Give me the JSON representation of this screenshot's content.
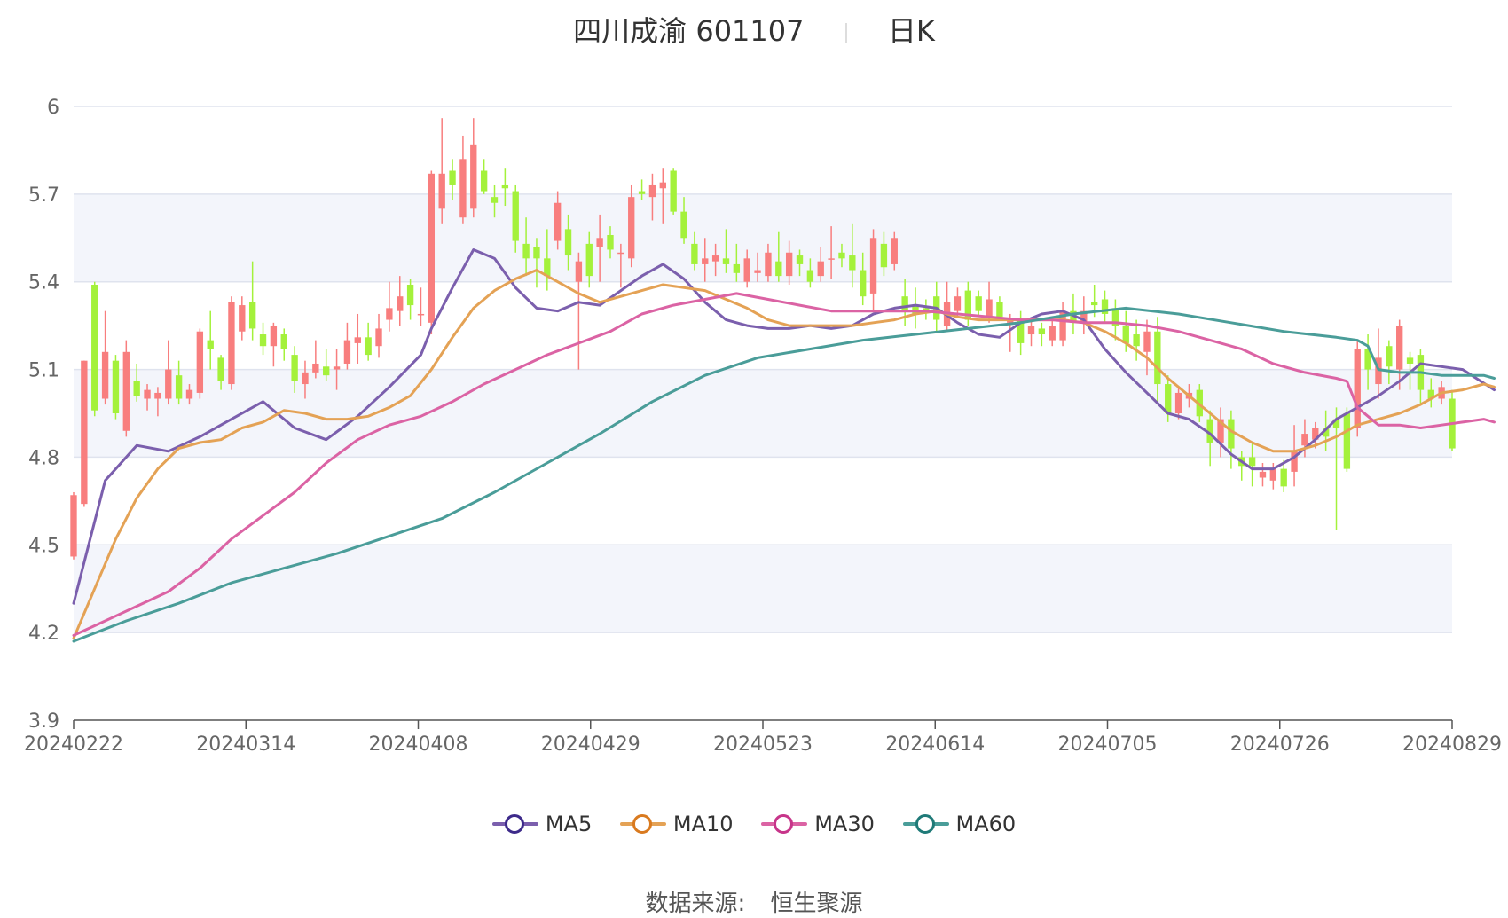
{
  "title": {
    "name": "四川成渝 601107",
    "period": "日K"
  },
  "source": {
    "label": "数据来源:",
    "provider": "恒生聚源"
  },
  "chart_data": {
    "type": "candlestick",
    "x_tick_labels": [
      "20240222",
      "20240314",
      "20240408",
      "20240429",
      "20240523",
      "20240614",
      "20240705",
      "20240726",
      "20240829"
    ],
    "y_ticks": [
      3.9,
      4.2,
      4.5,
      4.8,
      5.1,
      5.4,
      5.7,
      6
    ],
    "ylim": [
      3.9,
      6.0
    ],
    "colors": {
      "up": "#f87e7e",
      "down": "#a4f13b",
      "grid": "#dfe3ee",
      "band": "#f3f5fb",
      "axis": "#555555"
    },
    "candles": [
      [
        4.46,
        4.67,
        4.45,
        4.68
      ],
      [
        4.64,
        5.13,
        4.63,
        5.13
      ],
      [
        5.39,
        4.96,
        4.94,
        5.4
      ],
      [
        5.0,
        5.16,
        4.98,
        5.3
      ],
      [
        5.13,
        4.95,
        4.93,
        5.15
      ],
      [
        4.89,
        5.16,
        4.87,
        5.2
      ],
      [
        5.06,
        5.01,
        4.99,
        5.12
      ],
      [
        5.0,
        5.03,
        4.96,
        5.05
      ],
      [
        5.0,
        5.02,
        4.94,
        5.04
      ],
      [
        5.0,
        5.1,
        4.98,
        5.2
      ],
      [
        5.08,
        5.0,
        4.98,
        5.13
      ],
      [
        5.0,
        5.03,
        4.98,
        5.05
      ],
      [
        5.02,
        5.23,
        5.0,
        5.24
      ],
      [
        5.2,
        5.17,
        5.1,
        5.3
      ],
      [
        5.14,
        5.06,
        5.03,
        5.15
      ],
      [
        5.05,
        5.33,
        5.03,
        5.35
      ],
      [
        5.23,
        5.32,
        5.2,
        5.35
      ],
      [
        5.33,
        5.24,
        5.2,
        5.47
      ],
      [
        5.22,
        5.18,
        5.15,
        5.26
      ],
      [
        5.18,
        5.25,
        5.11,
        5.26
      ],
      [
        5.22,
        5.17,
        5.13,
        5.24
      ],
      [
        5.15,
        5.06,
        5.02,
        5.18
      ],
      [
        5.05,
        5.09,
        5.0,
        5.13
      ],
      [
        5.09,
        5.12,
        5.07,
        5.2
      ],
      [
        5.11,
        5.08,
        5.06,
        5.17
      ],
      [
        5.1,
        5.11,
        5.03,
        5.17
      ],
      [
        5.12,
        5.2,
        5.1,
        5.26
      ],
      [
        5.19,
        5.21,
        5.12,
        5.29
      ],
      [
        5.21,
        5.15,
        5.13,
        5.26
      ],
      [
        5.18,
        5.24,
        5.14,
        5.29
      ],
      [
        5.27,
        5.31,
        5.23,
        5.4
      ],
      [
        5.3,
        5.35,
        5.25,
        5.42
      ],
      [
        5.39,
        5.32,
        5.27,
        5.41
      ],
      [
        5.29,
        5.29,
        5.25,
        5.38
      ],
      [
        5.26,
        5.77,
        5.22,
        5.78
      ],
      [
        5.65,
        5.77,
        5.6,
        5.96
      ],
      [
        5.78,
        5.73,
        5.68,
        5.82
      ],
      [
        5.62,
        5.82,
        5.6,
        5.9
      ],
      [
        5.65,
        5.87,
        5.62,
        5.96
      ],
      [
        5.78,
        5.71,
        5.7,
        5.82
      ],
      [
        5.69,
        5.67,
        5.62,
        5.73
      ],
      [
        5.73,
        5.72,
        5.66,
        5.79
      ],
      [
        5.71,
        5.54,
        5.5,
        5.73
      ],
      [
        5.53,
        5.48,
        5.42,
        5.62
      ],
      [
        5.52,
        5.48,
        5.38,
        5.55
      ],
      [
        5.48,
        5.42,
        5.37,
        5.58
      ],
      [
        5.54,
        5.67,
        5.51,
        5.71
      ],
      [
        5.58,
        5.49,
        5.44,
        5.63
      ],
      [
        5.4,
        5.47,
        5.1,
        5.5
      ],
      [
        5.53,
        5.42,
        5.38,
        5.57
      ],
      [
        5.52,
        5.55,
        5.4,
        5.63
      ],
      [
        5.56,
        5.51,
        5.48,
        5.59
      ],
      [
        5.5,
        5.5,
        5.38,
        5.53
      ],
      [
        5.48,
        5.69,
        5.45,
        5.73
      ],
      [
        5.71,
        5.7,
        5.68,
        5.75
      ],
      [
        5.69,
        5.73,
        5.61,
        5.77
      ],
      [
        5.72,
        5.74,
        5.6,
        5.79
      ],
      [
        5.78,
        5.64,
        5.63,
        5.79
      ],
      [
        5.64,
        5.55,
        5.53,
        5.69
      ],
      [
        5.53,
        5.46,
        5.44,
        5.57
      ],
      [
        5.46,
        5.48,
        5.4,
        5.55
      ],
      [
        5.47,
        5.49,
        5.42,
        5.53
      ],
      [
        5.48,
        5.46,
        5.43,
        5.58
      ],
      [
        5.46,
        5.43,
        5.4,
        5.53
      ],
      [
        5.4,
        5.48,
        5.38,
        5.51
      ],
      [
        5.43,
        5.44,
        5.4,
        5.5
      ],
      [
        5.42,
        5.5,
        5.4,
        5.53
      ],
      [
        5.47,
        5.42,
        5.4,
        5.57
      ],
      [
        5.42,
        5.5,
        5.39,
        5.54
      ],
      [
        5.49,
        5.46,
        5.42,
        5.51
      ],
      [
        5.44,
        5.4,
        5.38,
        5.48
      ],
      [
        5.42,
        5.47,
        5.4,
        5.52
      ],
      [
        5.48,
        5.48,
        5.41,
        5.59
      ],
      [
        5.5,
        5.48,
        5.45,
        5.53
      ],
      [
        5.49,
        5.44,
        5.38,
        5.6
      ],
      [
        5.44,
        5.35,
        5.32,
        5.5
      ],
      [
        5.36,
        5.55,
        5.3,
        5.58
      ],
      [
        5.53,
        5.45,
        5.42,
        5.57
      ],
      [
        5.46,
        5.55,
        5.44,
        5.57
      ],
      [
        5.35,
        5.3,
        5.25,
        5.41
      ],
      [
        5.32,
        5.29,
        5.24,
        5.38
      ],
      [
        5.31,
        5.3,
        5.27,
        5.34
      ],
      [
        5.35,
        5.27,
        5.23,
        5.4
      ],
      [
        5.25,
        5.33,
        5.23,
        5.4
      ],
      [
        5.3,
        5.35,
        5.28,
        5.38
      ],
      [
        5.37,
        5.27,
        5.25,
        5.4
      ],
      [
        5.35,
        5.3,
        5.28,
        5.37
      ],
      [
        5.28,
        5.34,
        5.26,
        5.4
      ],
      [
        5.33,
        5.28,
        5.27,
        5.35
      ],
      [
        5.26,
        5.27,
        5.16,
        5.29
      ],
      [
        5.27,
        5.19,
        5.15,
        5.3
      ],
      [
        5.22,
        5.25,
        5.18,
        5.27
      ],
      [
        5.24,
        5.22,
        5.18,
        5.26
      ],
      [
        5.2,
        5.25,
        5.18,
        5.28
      ],
      [
        5.2,
        5.3,
        5.18,
        5.33
      ],
      [
        5.3,
        5.26,
        5.22,
        5.36
      ],
      [
        5.26,
        5.3,
        5.22,
        5.35
      ],
      [
        5.33,
        5.32,
        5.28,
        5.39
      ],
      [
        5.34,
        5.29,
        5.26,
        5.37
      ],
      [
        5.31,
        5.25,
        5.2,
        5.34
      ],
      [
        5.25,
        5.19,
        5.16,
        5.3
      ],
      [
        5.22,
        5.18,
        5.13,
        5.27
      ],
      [
        5.16,
        5.23,
        5.08,
        5.27
      ],
      [
        5.23,
        5.05,
        4.98,
        5.28
      ],
      [
        5.05,
        4.95,
        4.92,
        5.08
      ],
      [
        4.95,
        5.02,
        4.93,
        5.04
      ],
      [
        5.0,
        5.02,
        4.97,
        5.05
      ],
      [
        5.03,
        4.94,
        4.92,
        5.05
      ],
      [
        4.93,
        4.85,
        4.77,
        4.96
      ],
      [
        4.85,
        4.93,
        4.8,
        4.97
      ],
      [
        4.93,
        4.83,
        4.76,
        4.96
      ],
      [
        4.8,
        4.77,
        4.72,
        4.82
      ],
      [
        4.8,
        4.77,
        4.7,
        4.85
      ],
      [
        4.73,
        4.75,
        4.7,
        4.78
      ],
      [
        4.72,
        4.76,
        4.69,
        4.78
      ],
      [
        4.76,
        4.7,
        4.68,
        4.79
      ],
      [
        4.75,
        4.82,
        4.7,
        4.91
      ],
      [
        4.84,
        4.88,
        4.8,
        4.93
      ],
      [
        4.86,
        4.9,
        4.83,
        4.92
      ],
      [
        4.9,
        4.87,
        4.82,
        4.96
      ],
      [
        4.93,
        4.9,
        4.55,
        4.97
      ],
      [
        4.95,
        4.76,
        4.75,
        4.97
      ],
      [
        4.9,
        5.17,
        4.87,
        5.2
      ],
      [
        5.17,
        5.1,
        5.03,
        5.22
      ],
      [
        5.05,
        5.14,
        5.0,
        5.24
      ],
      [
        5.18,
        5.11,
        5.05,
        5.2
      ],
      [
        5.1,
        5.25,
        5.03,
        5.27
      ],
      [
        5.14,
        5.12,
        5.03,
        5.16
      ],
      [
        5.15,
        5.03,
        4.98,
        5.17
      ],
      [
        5.03,
        5.0,
        4.97,
        5.07
      ],
      [
        5.0,
        5.04,
        4.98,
        5.06
      ],
      [
        5.0,
        4.83,
        4.82,
        5.03
      ]
    ],
    "series": [
      {
        "name": "MA5",
        "color": "#7b5fad",
        "x": [
          0,
          3,
          6,
          9,
          12,
          15,
          18,
          21,
          24,
          27,
          30,
          33,
          34,
          36,
          38,
          40,
          42,
          44,
          46,
          48,
          50,
          52,
          54,
          56,
          58,
          60,
          62,
          64,
          66,
          68,
          70,
          72,
          74,
          76,
          78,
          80,
          82,
          84,
          86,
          88,
          90,
          92,
          94,
          96,
          98,
          100,
          102,
          104,
          106,
          108,
          110,
          112,
          114,
          116,
          118,
          120,
          122,
          124,
          126,
          128,
          130,
          132,
          135
        ],
        "y": [
          4.3,
          4.72,
          4.84,
          4.82,
          4.87,
          4.93,
          4.99,
          4.9,
          4.86,
          4.94,
          5.04,
          5.15,
          5.24,
          5.38,
          5.51,
          5.48,
          5.38,
          5.31,
          5.3,
          5.33,
          5.32,
          5.37,
          5.42,
          5.46,
          5.41,
          5.33,
          5.27,
          5.25,
          5.24,
          5.24,
          5.25,
          5.24,
          5.25,
          5.29,
          5.31,
          5.32,
          5.31,
          5.26,
          5.22,
          5.21,
          5.26,
          5.29,
          5.3,
          5.27,
          5.17,
          5.09,
          5.02,
          4.95,
          4.93,
          4.88,
          4.81,
          4.76,
          4.76,
          4.8,
          4.86,
          4.93,
          4.97,
          5.01,
          5.06,
          5.12,
          5.11,
          5.1,
          5.03
        ]
      },
      {
        "name": "MA10",
        "color": "#e4a255",
        "x": [
          0,
          2,
          4,
          6,
          8,
          10,
          12,
          14,
          16,
          18,
          20,
          22,
          24,
          26,
          28,
          30,
          32,
          34,
          36,
          38,
          40,
          42,
          44,
          46,
          48,
          50,
          52,
          54,
          56,
          58,
          60,
          62,
          64,
          66,
          68,
          70,
          72,
          74,
          76,
          78,
          80,
          82,
          84,
          86,
          88,
          90,
          92,
          94,
          96,
          98,
          100,
          102,
          104,
          106,
          108,
          110,
          112,
          114,
          116,
          118,
          120,
          122,
          124,
          126,
          128,
          130,
          132,
          134,
          135
        ],
        "y": [
          4.18,
          4.35,
          4.52,
          4.66,
          4.76,
          4.83,
          4.85,
          4.86,
          4.9,
          4.92,
          4.96,
          4.95,
          4.93,
          4.93,
          4.94,
          4.97,
          5.01,
          5.1,
          5.21,
          5.31,
          5.37,
          5.41,
          5.44,
          5.4,
          5.36,
          5.33,
          5.35,
          5.37,
          5.39,
          5.38,
          5.37,
          5.34,
          5.31,
          5.27,
          5.25,
          5.25,
          5.25,
          5.25,
          5.26,
          5.27,
          5.29,
          5.3,
          5.28,
          5.27,
          5.27,
          5.27,
          5.27,
          5.27,
          5.26,
          5.23,
          5.19,
          5.14,
          5.07,
          5.01,
          4.95,
          4.89,
          4.85,
          4.82,
          4.82,
          4.84,
          4.87,
          4.91,
          4.93,
          4.95,
          4.98,
          5.02,
          5.03,
          5.05,
          5.04
        ]
      },
      {
        "name": "MA30",
        "color": "#db63a4",
        "x": [
          0,
          3,
          6,
          9,
          12,
          15,
          18,
          21,
          24,
          27,
          30,
          33,
          36,
          39,
          42,
          45,
          48,
          51,
          54,
          57,
          60,
          63,
          66,
          69,
          72,
          75,
          78,
          81,
          84,
          87,
          90,
          93,
          96,
          99,
          102,
          105,
          108,
          111,
          114,
          117,
          120,
          121,
          122,
          123,
          124,
          126,
          128,
          130,
          132,
          134,
          135
        ],
        "y": [
          4.19,
          4.24,
          4.29,
          4.34,
          4.42,
          4.52,
          4.6,
          4.68,
          4.78,
          4.86,
          4.91,
          4.94,
          4.99,
          5.05,
          5.1,
          5.15,
          5.19,
          5.23,
          5.29,
          5.32,
          5.34,
          5.36,
          5.34,
          5.32,
          5.3,
          5.3,
          5.3,
          5.3,
          5.29,
          5.28,
          5.27,
          5.27,
          5.26,
          5.26,
          5.25,
          5.23,
          5.2,
          5.17,
          5.12,
          5.09,
          5.07,
          5.06,
          4.97,
          4.94,
          4.91,
          4.91,
          4.9,
          4.91,
          4.92,
          4.93,
          4.92
        ]
      },
      {
        "name": "MA60",
        "color": "#4a9d99",
        "x": [
          0,
          5,
          10,
          15,
          20,
          25,
          30,
          35,
          40,
          45,
          50,
          55,
          60,
          65,
          70,
          75,
          80,
          85,
          90,
          95,
          100,
          105,
          110,
          115,
          120,
          122,
          123,
          124,
          126,
          128,
          130,
          132,
          134,
          135
        ],
        "y": [
          4.17,
          4.24,
          4.3,
          4.37,
          4.42,
          4.47,
          4.53,
          4.59,
          4.68,
          4.78,
          4.88,
          4.99,
          5.08,
          5.14,
          5.17,
          5.2,
          5.22,
          5.24,
          5.26,
          5.29,
          5.31,
          5.29,
          5.26,
          5.23,
          5.21,
          5.2,
          5.18,
          5.1,
          5.09,
          5.09,
          5.08,
          5.08,
          5.08,
          5.07
        ]
      }
    ]
  }
}
